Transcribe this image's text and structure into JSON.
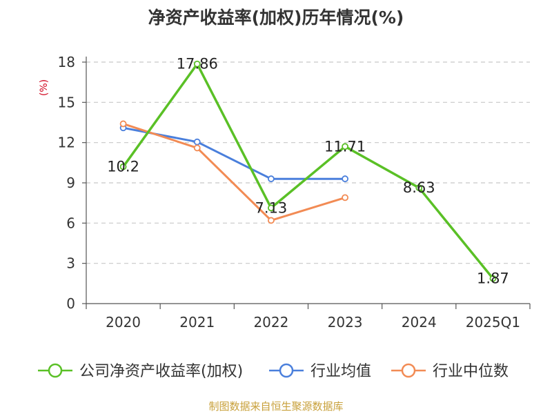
{
  "chart_data": {
    "type": "line",
    "title": "净资产收益率(加权)历年情况(%)",
    "ylabel": "(%)",
    "xlabel": "",
    "ylim": [
      0,
      18
    ],
    "yticks": [
      0,
      3,
      6,
      9,
      12,
      15,
      18
    ],
    "categories": [
      "2020",
      "2021",
      "2022",
      "2023",
      "2024",
      "2025Q1"
    ],
    "grid": true,
    "legend_position": "bottom",
    "series": [
      {
        "name": "公司净资产收益率(加权)",
        "color": "#5ac026",
        "values": [
          10.2,
          17.86,
          7.13,
          11.71,
          8.63,
          1.87
        ],
        "labels": [
          "10.2",
          "17.86",
          "7.13",
          "11.71",
          "8.63",
          "1.87"
        ]
      },
      {
        "name": "行业均值",
        "color": "#4a7fdc",
        "values": [
          13.1,
          12.05,
          9.3,
          9.3,
          null,
          null
        ],
        "labels": null
      },
      {
        "name": "行业中位数",
        "color": "#f28b54",
        "values": [
          13.4,
          11.6,
          6.2,
          7.9,
          null,
          null
        ],
        "labels": null
      }
    ]
  },
  "source": "制图数据来自恒生聚源数据库"
}
